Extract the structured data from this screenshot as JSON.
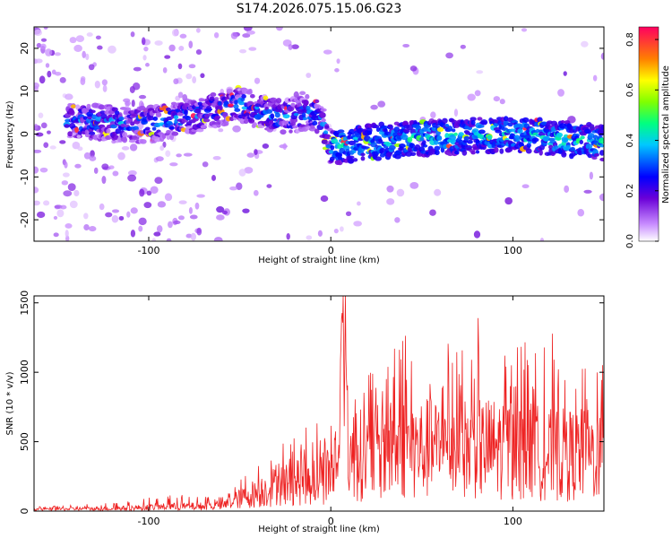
{
  "title": "S174.2026.075.15.06.G23",
  "chart_data": [
    {
      "type": "heatmap",
      "xlabel": "Height of straight line (km)",
      "ylabel": "Frequency (Hz)",
      "xlim": [
        -163,
        150
      ],
      "ylim": [
        -25,
        25
      ],
      "xticks": [
        -100,
        0,
        100
      ],
      "yticks": [
        -20,
        -10,
        0,
        10,
        20
      ],
      "colorbar": {
        "label": "Normalized spectral amplitude",
        "range": [
          0,
          0.85
        ],
        "ticks": [
          0.0,
          0.2,
          0.4,
          0.6,
          0.8
        ]
      },
      "ridge": {
        "description_points_x": [
          -140,
          -100,
          -70,
          -50,
          -30,
          -10,
          -5,
          0,
          20,
          50,
          100,
          150
        ],
        "description_points_y": [
          3,
          2,
          5,
          7,
          4,
          5,
          3,
          -3,
          -2,
          -1,
          0,
          -2
        ]
      }
    },
    {
      "type": "line",
      "xlabel": "Height of straight line (km)",
      "ylabel": "SNR (10 * v/v)",
      "xlim": [
        -163,
        150
      ],
      "ylim": [
        0,
        1550
      ],
      "xticks": [
        -100,
        0,
        100
      ],
      "yticks": [
        0,
        500,
        1000,
        1500
      ],
      "color": "#ee2222",
      "envelope": {
        "x": [
          -163,
          -120,
          -90,
          -60,
          -50,
          -40,
          -30,
          -20,
          -10,
          -5,
          0,
          5,
          6,
          10,
          20,
          40,
          60,
          80,
          100,
          120,
          140,
          150
        ],
        "typical": [
          15,
          20,
          35,
          40,
          100,
          150,
          200,
          250,
          250,
          280,
          300,
          500,
          1500,
          450,
          450,
          500,
          500,
          500,
          500,
          450,
          450,
          450
        ],
        "peak": [
          30,
          60,
          130,
          100,
          220,
          350,
          460,
          560,
          640,
          650,
          650,
          1000,
          1560,
          800,
          1000,
          1380,
          1200,
          1400,
          1200,
          1300,
          1100,
          1050
        ]
      }
    }
  ]
}
